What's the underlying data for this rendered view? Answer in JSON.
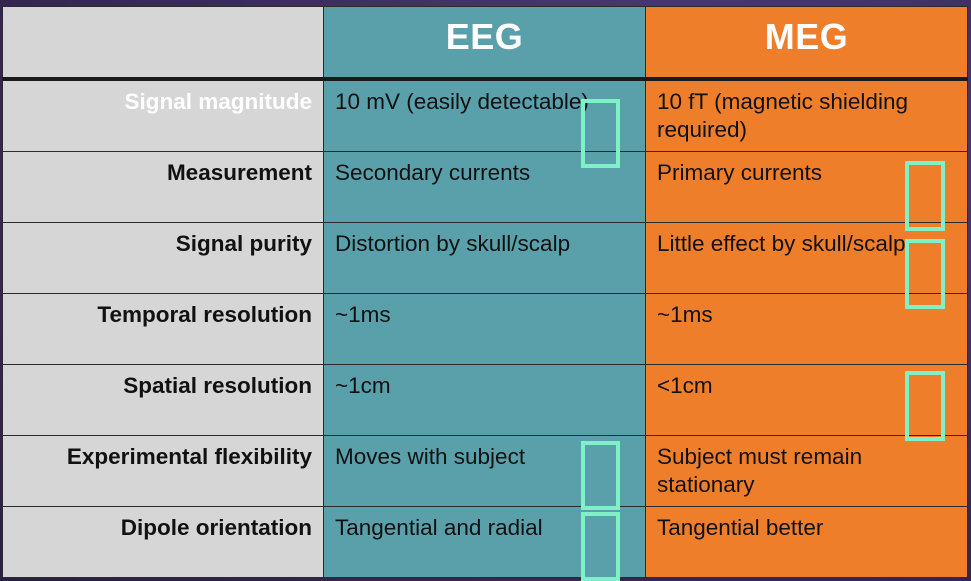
{
  "header": {
    "eeg": "EEG",
    "meg": "MEG"
  },
  "rows": [
    {
      "label": "Signal magnitude",
      "eeg": "10 mV (easily detectable)",
      "meg": "10 fT (magnetic shielding required)"
    },
    {
      "label": "Measurement",
      "eeg": "Secondary currents",
      "meg": "Primary currents"
    },
    {
      "label": "Signal purity",
      "eeg": "Distortion by skull/scalp",
      "meg": "Little effect by skull/scalp"
    },
    {
      "label": "Temporal resolution",
      "eeg": "~1ms",
      "meg": "~1ms"
    },
    {
      "label": "Spatial resolution",
      "eeg": "~1cm",
      "meg": "<1cm"
    },
    {
      "label": "Experimental flexibility",
      "eeg": "Moves with subject",
      "meg": "Subject must remain stationary"
    },
    {
      "label": "Dipole orientation",
      "eeg": "Tangential and radial",
      "meg": "Tangential better"
    }
  ],
  "colors": {
    "label_column": "#d6d6d6",
    "eeg_column": "#5aa0ab",
    "meg_column": "#ef7e2a",
    "missing_glyph_box": "#7ff0c8"
  },
  "icons": [
    "missing-glyph-icon"
  ]
}
